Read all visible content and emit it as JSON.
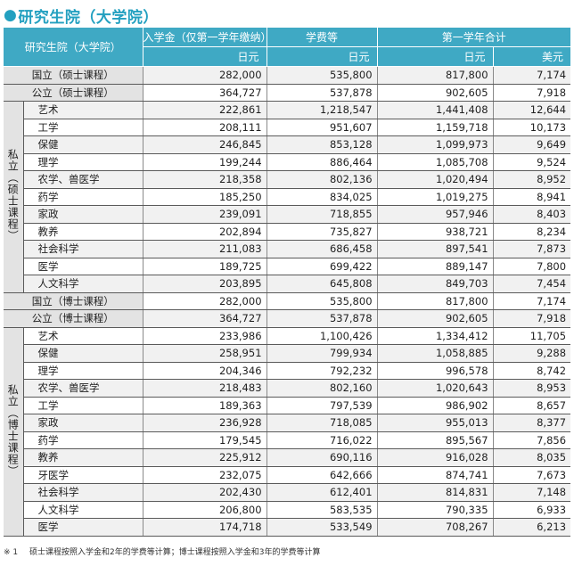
{
  "title": "研究生院（大学院）",
  "header": {
    "corner": "研究生院（大学院）",
    "col1": "入学金（仅第一学年缴纳）",
    "col2": "学费等",
    "col3": "第一学年合计",
    "units": [
      "日元",
      "日元",
      "日元",
      "美元"
    ]
  },
  "rows": [
    {
      "label": "国立（硕士课程）",
      "v": [
        "282,000",
        "535,800",
        "817,800",
        "7,174"
      ]
    },
    {
      "label": "公立（硕士课程）",
      "v": [
        "364,727",
        "537,878",
        "902,605",
        "7,918"
      ]
    }
  ],
  "group1": {
    "label": "私立（硕士课程）",
    "rows": [
      {
        "label": "艺术",
        "v": [
          "222,861",
          "1,218,547",
          "1,441,408",
          "12,644"
        ]
      },
      {
        "label": "工学",
        "v": [
          "208,111",
          "951,607",
          "1,159,718",
          "10,173"
        ]
      },
      {
        "label": "保健",
        "v": [
          "246,845",
          "853,128",
          "1,099,973",
          "9,649"
        ]
      },
      {
        "label": "理学",
        "v": [
          "199,244",
          "886,464",
          "1,085,708",
          "9,524"
        ]
      },
      {
        "label": "农学、兽医学",
        "v": [
          "218,358",
          "802,136",
          "1,020,494",
          "8,952"
        ]
      },
      {
        "label": "药学",
        "v": [
          "185,250",
          "834,025",
          "1,019,275",
          "8,941"
        ]
      },
      {
        "label": "家政",
        "v": [
          "239,091",
          "718,855",
          "957,946",
          "8,403"
        ]
      },
      {
        "label": "教养",
        "v": [
          "202,894",
          "735,827",
          "938,721",
          "8,234"
        ]
      },
      {
        "label": "社会科学",
        "v": [
          "211,083",
          "686,458",
          "897,541",
          "7,873"
        ]
      },
      {
        "label": "医学",
        "v": [
          "189,725",
          "699,422",
          "889,147",
          "7,800"
        ]
      },
      {
        "label": "人文科学",
        "v": [
          "203,895",
          "645,808",
          "849,703",
          "7,454"
        ]
      }
    ]
  },
  "rows2": [
    {
      "label": "国立（博士课程）",
      "v": [
        "282,000",
        "535,800",
        "817,800",
        "7,174"
      ]
    },
    {
      "label": "公立（博士课程）",
      "v": [
        "364,727",
        "537,878",
        "902,605",
        "7,918"
      ]
    }
  ],
  "group2": {
    "label": "私立（博士课程）",
    "rows": [
      {
        "label": "艺术",
        "v": [
          "233,986",
          "1,100,426",
          "1,334,412",
          "11,705"
        ]
      },
      {
        "label": "保健",
        "v": [
          "258,951",
          "799,934",
          "1,058,885",
          "9,288"
        ]
      },
      {
        "label": "理学",
        "v": [
          "204,346",
          "792,232",
          "996,578",
          "8,742"
        ]
      },
      {
        "label": "农学、兽医学",
        "v": [
          "218,483",
          "802,160",
          "1,020,643",
          "8,953"
        ]
      },
      {
        "label": "工学",
        "v": [
          "189,363",
          "797,539",
          "986,902",
          "8,657"
        ]
      },
      {
        "label": "家政",
        "v": [
          "236,928",
          "718,085",
          "955,013",
          "8,377"
        ]
      },
      {
        "label": "药学",
        "v": [
          "179,545",
          "716,022",
          "895,567",
          "7,856"
        ]
      },
      {
        "label": "教养",
        "v": [
          "225,912",
          "690,116",
          "916,028",
          "8,035"
        ]
      },
      {
        "label": "牙医学",
        "v": [
          "232,075",
          "642,666",
          "874,741",
          "7,673"
        ]
      },
      {
        "label": "社会科学",
        "v": [
          "202,430",
          "612,401",
          "814,831",
          "7,148"
        ]
      },
      {
        "label": "人文科学",
        "v": [
          "206,800",
          "583,535",
          "790,335",
          "6,933"
        ]
      },
      {
        "label": "医学",
        "v": [
          "174,718",
          "533,549",
          "708,267",
          "6,213"
        ]
      }
    ]
  },
  "footnote": {
    "mark": "※ 1",
    "text": "硕士课程按照入学金和2年的学费等计算；博士课程按照入学金和3年的学费等计算"
  },
  "colors": {
    "accent": "#3fa9c4",
    "title": "#23a0c0"
  }
}
